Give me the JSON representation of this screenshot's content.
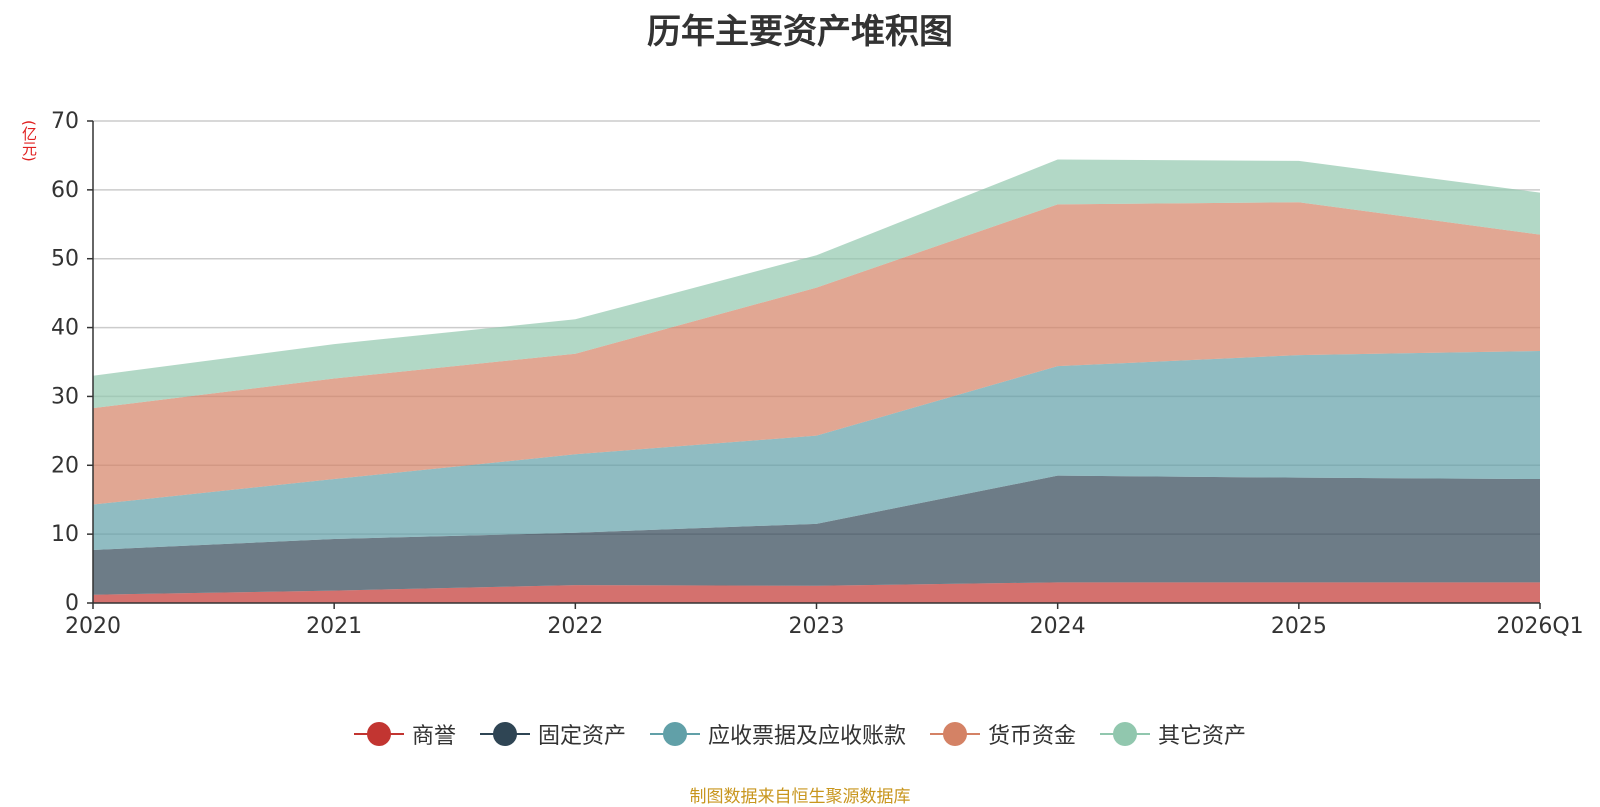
{
  "chart_data": {
    "type": "area",
    "stacked": true,
    "title": "历年主要资产堆积图",
    "ylabel": "(亿元)",
    "xlabel": "",
    "ylim": [
      0,
      70
    ],
    "yticks": [
      0,
      10,
      20,
      30,
      40,
      50,
      60,
      70
    ],
    "grid": true,
    "legend_position": "bottom",
    "categories": [
      "2020",
      "2021",
      "2022",
      "2023",
      "2024",
      "2025",
      "2026Q1"
    ],
    "series": [
      {
        "name": "商誉",
        "color": "#c23531",
        "values": [
          1.2,
          1.8,
          2.6,
          2.5,
          3.0,
          3.0,
          3.0
        ]
      },
      {
        "name": "固定资产",
        "color": "#2f4554",
        "values": [
          6.5,
          7.5,
          7.6,
          9.0,
          15.5,
          15.2,
          15.0
        ]
      },
      {
        "name": "应收票据及应收账款",
        "color": "#61a0a8",
        "values": [
          6.6,
          8.7,
          11.4,
          12.8,
          15.9,
          17.8,
          18.6
        ]
      },
      {
        "name": "货币资金",
        "color": "#d48265",
        "values": [
          14.0,
          14.6,
          14.6,
          21.5,
          23.5,
          22.2,
          16.9
        ]
      },
      {
        "name": "其它资产",
        "color": "#91c7ae",
        "values": [
          4.7,
          5.0,
          5.0,
          4.7,
          6.5,
          6.0,
          6.1
        ]
      }
    ],
    "source": "制图数据来自恒生聚源数据库"
  }
}
